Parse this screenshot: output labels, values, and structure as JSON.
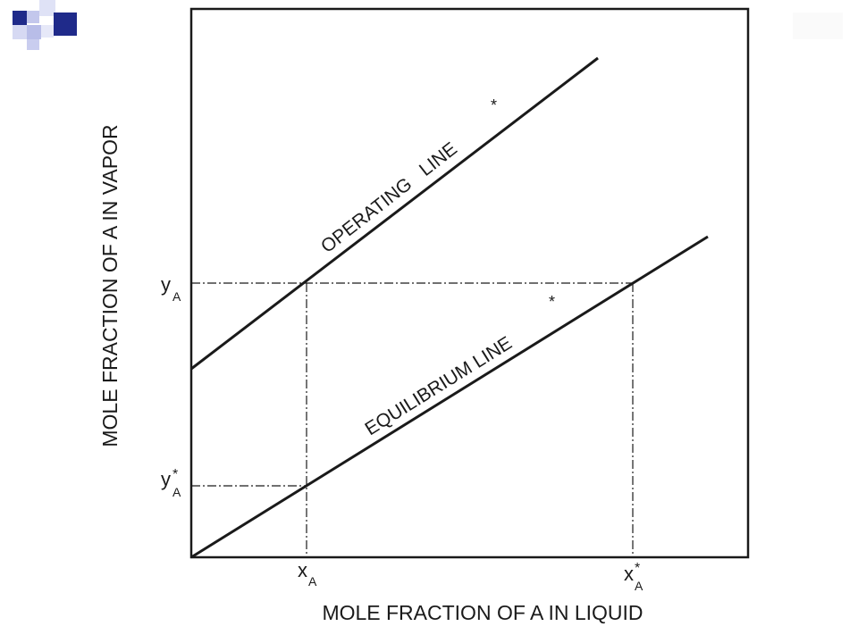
{
  "colors": {
    "ink": "#1a1a1a",
    "decor_dark": "#1f2a8a",
    "decor_light": "#b8bde8"
  },
  "diagram": {
    "x_axis_label": "MOLE FRACTION OF A IN LIQUID",
    "y_axis_label": "MOLE FRACTION OF A IN VAPOR",
    "operating_line": {
      "label": "OPERATING   LINE",
      "star": "*"
    },
    "equilibrium_line": {
      "label": "EQUILIBRIUM LINE",
      "star": "*"
    },
    "tick_labels": {
      "yA": {
        "main": "y",
        "sub": "A",
        "sup": ""
      },
      "yA_star": {
        "main": "y",
        "sub": "A",
        "sup": "*"
      },
      "xA": {
        "main": "x",
        "sub": "A",
        "sup": ""
      },
      "xA_star": {
        "main": "x",
        "sub": "A",
        "sup": "*"
      }
    }
  }
}
